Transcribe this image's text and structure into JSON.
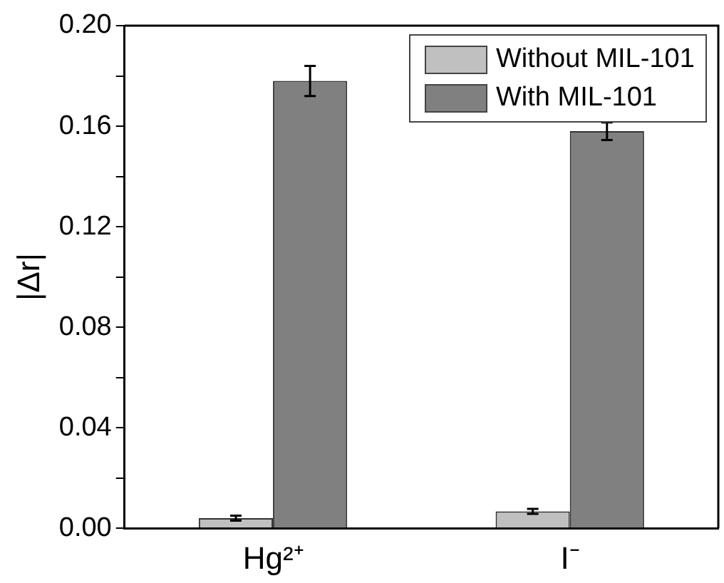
{
  "chart_data": {
    "type": "bar",
    "ylabel": "|Δr|",
    "categories": [
      "Hg²⁺",
      "I⁻"
    ],
    "series": [
      {
        "name": "Without MIL-101",
        "color": "#c0c0c0",
        "values": [
          0.004,
          0.0067
        ],
        "errors": [
          0.001,
          0.001
        ]
      },
      {
        "name": "With MIL-101",
        "color": "#808080",
        "values": [
          0.178,
          0.158
        ],
        "errors": [
          0.006,
          0.0035
        ]
      }
    ],
    "ylim": [
      0,
      0.2
    ],
    "yticks": [
      {
        "value": 0,
        "label": "0.00"
      },
      {
        "value": 0.02,
        "label": null
      },
      0.04,
      {
        "value": 0.06,
        "label": null
      },
      0.08,
      {
        "value": 0.1,
        "label": null
      },
      0.12,
      {
        "value": 0.14,
        "label": null
      },
      0.16,
      {
        "value": 0.18,
        "label": null
      },
      {
        "value": 0.2,
        "label": "0.20"
      }
    ],
    "grid": false,
    "legend": "top right"
  }
}
